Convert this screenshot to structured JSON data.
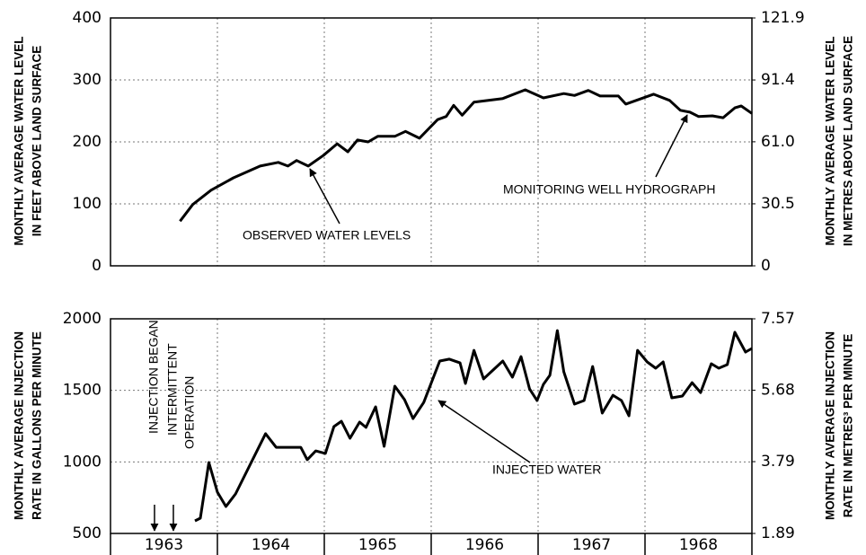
{
  "chart_data": [
    {
      "type": "line",
      "ylabel": [
        "MONTHLY AVERAGE WATER LEVEL",
        "IN FEET ABOVE LAND SURFACE"
      ],
      "y2label": [
        "MONTHLY AVERAGE WATER LEVEL",
        "IN METRES ABOVE LAND SURFACE"
      ],
      "annotations": [
        "OBSERVED WATER LEVELS",
        "MONITORING WELL HYDROGRAPH"
      ],
      "color": "#000000",
      "grid": true,
      "xlim": [
        1963,
        1969
      ],
      "xticks": [
        1964,
        1965,
        1966,
        1967,
        1968
      ],
      "ylim": [
        0,
        400
      ],
      "yticks": [
        0,
        100,
        200,
        300,
        400
      ],
      "y2lim": [
        0,
        121.9
      ],
      "y2ticks": [
        0,
        30.5,
        {
          "value": 61,
          "label": "61.0"
        },
        91.4,
        121.9
      ],
      "x": [
        1963.65,
        1963.77,
        1963.94,
        1964.15,
        1964.4,
        1964.57,
        1964.66,
        1964.74,
        1964.85,
        1964.99,
        1965.12,
        1965.22,
        1965.31,
        1965.41,
        1965.5,
        1965.66,
        1965.76,
        1965.89,
        1966.06,
        1966.14,
        1966.21,
        1966.29,
        1966.4,
        1966.67,
        1966.88,
        1967.05,
        1967.24,
        1967.34,
        1967.47,
        1967.58,
        1967.75,
        1967.82,
        1968.08,
        1968.23,
        1968.33,
        1968.42,
        1968.5,
        1968.63,
        1968.73,
        1968.84,
        1968.9,
        1969.0
      ],
      "values": [
        72,
        99,
        122,
        142,
        161,
        167,
        161,
        170,
        161,
        178,
        197,
        184,
        203,
        200,
        209,
        209,
        217,
        206,
        236,
        241,
        259,
        243,
        264,
        270,
        284,
        271,
        278,
        275,
        283,
        274,
        274,
        261,
        277,
        267,
        251,
        248,
        241,
        242,
        239,
        255,
        258,
        246
      ]
    },
    {
      "type": "line",
      "ylabel": [
        "MONTHLY AVERAGE INJECTION",
        "RATE IN GALLONS PER MINUTE"
      ],
      "y2label": [
        "MONTHLY AVERAGE INJECTION",
        "RATE IN METRES³ PER MINUTE"
      ],
      "annotations": [
        "INJECTION BEGAN",
        "INTERMITTENT",
        "OPERATION",
        "INJECTED WATER"
      ],
      "categories": [
        "1963",
        "1964",
        "1965",
        "1966",
        "1967",
        "1968"
      ],
      "color": "#000000",
      "grid": true,
      "xlim": [
        1963,
        1969
      ],
      "xticks": [
        1964,
        1965,
        1966,
        1967,
        1968
      ],
      "ylim": [
        500,
        2000
      ],
      "yticks": [
        500,
        1000,
        1500,
        2000
      ],
      "y2lim": [
        1.89,
        7.57
      ],
      "y2ticks": [
        1.89,
        3.79,
        5.68,
        7.57
      ],
      "x": [
        1963.79,
        1963.84,
        1963.92,
        1964.0,
        1964.08,
        1964.17,
        1964.45,
        1964.55,
        1964.78,
        1964.84,
        1964.92,
        1965.01,
        1965.09,
        1965.16,
        1965.24,
        1965.33,
        1965.39,
        1965.48,
        1965.56,
        1965.66,
        1965.75,
        1965.83,
        1965.93,
        1966.08,
        1966.17,
        1966.27,
        1966.32,
        1966.4,
        1966.49,
        1966.67,
        1966.76,
        1966.84,
        1966.92,
        1966.99,
        1967.05,
        1967.11,
        1967.18,
        1967.24,
        1967.34,
        1967.43,
        1967.51,
        1967.6,
        1967.7,
        1967.78,
        1967.85,
        1967.93,
        1968.02,
        1968.1,
        1968.17,
        1968.25,
        1968.35,
        1968.44,
        1968.52,
        1968.62,
        1968.69,
        1968.77,
        1968.84,
        1968.94,
        1969.0
      ],
      "values": [
        588,
        607,
        996,
        789,
        688,
        776,
        1197,
        1102,
        1102,
        1015,
        1077,
        1059,
        1247,
        1284,
        1165,
        1278,
        1241,
        1385,
        1109,
        1529,
        1435,
        1303,
        1416,
        1705,
        1718,
        1692,
        1548,
        1780,
        1580,
        1705,
        1592,
        1736,
        1510,
        1429,
        1542,
        1605,
        1918,
        1630,
        1404,
        1429,
        1667,
        1341,
        1466,
        1429,
        1322,
        1780,
        1699,
        1655,
        1699,
        1448,
        1460,
        1554,
        1485,
        1686,
        1655,
        1680,
        1906,
        1768,
        1793
      ]
    }
  ]
}
